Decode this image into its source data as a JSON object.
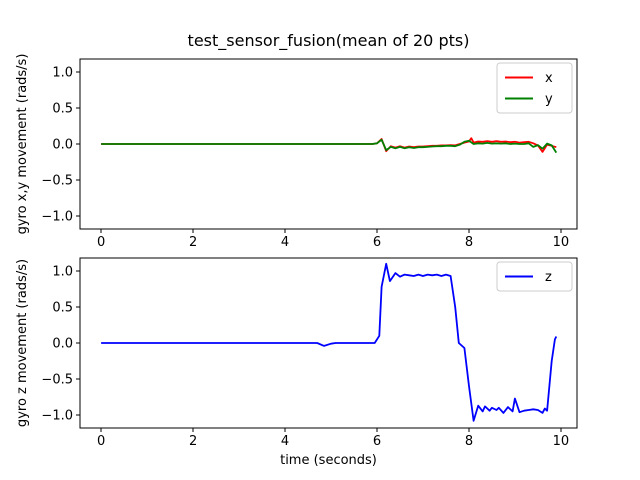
{
  "figure": {
    "background": "#ffffff",
    "title": "test_sensor_fusion(mean of 20 pts)"
  },
  "chart_data": [
    {
      "type": "line",
      "title": "test_sensor_fusion(mean of 20 pts)",
      "xlabel": "",
      "ylabel": "gyro x,y movement (rads/s)",
      "xlim": [
        -0.46,
        10.35
      ],
      "ylim": [
        -1.18,
        1.18
      ],
      "grid": false,
      "legend_position": "upper right",
      "xticks": {
        "values": [
          0,
          2,
          4,
          6,
          8,
          10
        ],
        "labels": [
          "0",
          "2",
          "4",
          "6",
          "8",
          "10"
        ]
      },
      "yticks": {
        "values": [
          1.0,
          0.5,
          0.0,
          -0.5,
          -1.0
        ],
        "labels": [
          "1.0",
          "0.5",
          "0.0",
          "−0.5",
          "−1.0"
        ]
      },
      "series": [
        {
          "name": "x",
          "color": "#ff0000",
          "points": [
            [
              0.0,
              0.0
            ],
            [
              0.5,
              0.0
            ],
            [
              1.0,
              0.0
            ],
            [
              1.5,
              0.0
            ],
            [
              2.0,
              0.0
            ],
            [
              2.5,
              0.0
            ],
            [
              3.0,
              0.0
            ],
            [
              3.5,
              0.0
            ],
            [
              4.0,
              0.0
            ],
            [
              4.5,
              0.0
            ],
            [
              5.0,
              0.0
            ],
            [
              5.5,
              0.0
            ],
            [
              5.9,
              0.0
            ],
            [
              6.0,
              0.01
            ],
            [
              6.1,
              0.07
            ],
            [
              6.2,
              -0.1
            ],
            [
              6.3,
              -0.03
            ],
            [
              6.4,
              -0.05
            ],
            [
              6.5,
              -0.03
            ],
            [
              6.6,
              -0.05
            ],
            [
              6.7,
              -0.035
            ],
            [
              6.8,
              -0.045
            ],
            [
              6.9,
              -0.035
            ],
            [
              7.0,
              -0.035
            ],
            [
              7.1,
              -0.03
            ],
            [
              7.2,
              -0.025
            ],
            [
              7.3,
              -0.025
            ],
            [
              7.4,
              -0.02
            ],
            [
              7.5,
              -0.02
            ],
            [
              7.6,
              -0.015
            ],
            [
              7.7,
              -0.02
            ],
            [
              7.8,
              0.0
            ],
            [
              7.9,
              0.02
            ],
            [
              8.0,
              0.035
            ],
            [
              8.05,
              0.08
            ],
            [
              8.1,
              0.02
            ],
            [
              8.2,
              0.035
            ],
            [
              8.3,
              0.03
            ],
            [
              8.4,
              0.04
            ],
            [
              8.5,
              0.03
            ],
            [
              8.6,
              0.04
            ],
            [
              8.7,
              0.03
            ],
            [
              8.8,
              0.035
            ],
            [
              8.9,
              0.025
            ],
            [
              9.0,
              0.03
            ],
            [
              9.1,
              0.02
            ],
            [
              9.2,
              0.025
            ],
            [
              9.3,
              0.03
            ],
            [
              9.4,
              0.01
            ],
            [
              9.5,
              -0.02
            ],
            [
              9.6,
              -0.11
            ],
            [
              9.7,
              -0.01
            ],
            [
              9.8,
              -0.025
            ],
            [
              9.9,
              -0.045
            ]
          ]
        },
        {
          "name": "y",
          "color": "#008000",
          "points": [
            [
              0.0,
              0.0
            ],
            [
              0.5,
              0.0
            ],
            [
              1.0,
              0.0
            ],
            [
              1.5,
              0.0
            ],
            [
              2.0,
              0.0
            ],
            [
              2.5,
              0.0
            ],
            [
              3.0,
              0.0
            ],
            [
              3.5,
              0.0
            ],
            [
              4.0,
              0.0
            ],
            [
              4.5,
              0.0
            ],
            [
              5.0,
              0.0
            ],
            [
              5.5,
              0.0
            ],
            [
              5.9,
              0.0
            ],
            [
              6.0,
              0.01
            ],
            [
              6.1,
              0.06
            ],
            [
              6.2,
              -0.085
            ],
            [
              6.3,
              -0.04
            ],
            [
              6.4,
              -0.06
            ],
            [
              6.5,
              -0.04
            ],
            [
              6.6,
              -0.06
            ],
            [
              6.7,
              -0.045
            ],
            [
              6.8,
              -0.055
            ],
            [
              6.9,
              -0.045
            ],
            [
              7.0,
              -0.045
            ],
            [
              7.1,
              -0.04
            ],
            [
              7.2,
              -0.035
            ],
            [
              7.3,
              -0.03
            ],
            [
              7.4,
              -0.03
            ],
            [
              7.5,
              -0.025
            ],
            [
              7.6,
              -0.025
            ],
            [
              7.7,
              -0.03
            ],
            [
              7.8,
              -0.01
            ],
            [
              7.9,
              0.03
            ],
            [
              8.0,
              0.045
            ],
            [
              8.1,
              0.0
            ],
            [
              8.2,
              0.01
            ],
            [
              8.3,
              0.005
            ],
            [
              8.4,
              0.015
            ],
            [
              8.5,
              0.005
            ],
            [
              8.6,
              0.01
            ],
            [
              8.7,
              0.005
            ],
            [
              8.8,
              0.01
            ],
            [
              8.9,
              0.0
            ],
            [
              9.0,
              0.005
            ],
            [
              9.1,
              0.0
            ],
            [
              9.2,
              0.0
            ],
            [
              9.3,
              0.01
            ],
            [
              9.4,
              -0.04
            ],
            [
              9.5,
              -0.015
            ],
            [
              9.6,
              -0.065
            ],
            [
              9.7,
              0.005
            ],
            [
              9.8,
              -0.02
            ],
            [
              9.9,
              -0.12
            ]
          ]
        }
      ]
    },
    {
      "type": "line",
      "title": "",
      "xlabel": "time (seconds)",
      "ylabel": "gyro z movement (rads/s)",
      "xlim": [
        -0.46,
        10.35
      ],
      "ylim": [
        -1.18,
        1.18
      ],
      "grid": false,
      "legend_position": "upper right",
      "xticks": {
        "values": [
          0,
          2,
          4,
          6,
          8,
          10
        ],
        "labels": [
          "0",
          "2",
          "4",
          "6",
          "8",
          "10"
        ]
      },
      "yticks": {
        "values": [
          1.0,
          0.5,
          0.0,
          -0.5,
          -1.0
        ],
        "labels": [
          "1.0",
          "0.5",
          "0.0",
          "−0.5",
          "−1.0"
        ]
      },
      "series": [
        {
          "name": "z",
          "color": "#0000ff",
          "points": [
            [
              0.0,
              0.0
            ],
            [
              0.5,
              0.0
            ],
            [
              1.0,
              0.0
            ],
            [
              1.5,
              0.0
            ],
            [
              2.0,
              0.0
            ],
            [
              2.5,
              0.0
            ],
            [
              3.0,
              0.0
            ],
            [
              3.5,
              0.0
            ],
            [
              4.0,
              0.0
            ],
            [
              4.5,
              0.0
            ],
            [
              4.7,
              0.0
            ],
            [
              4.85,
              -0.04
            ],
            [
              5.0,
              -0.01
            ],
            [
              5.1,
              0.0
            ],
            [
              5.5,
              0.0
            ],
            [
              5.95,
              0.0
            ],
            [
              6.05,
              0.1
            ],
            [
              6.1,
              0.78
            ],
            [
              6.2,
              1.1
            ],
            [
              6.28,
              0.86
            ],
            [
              6.4,
              0.97
            ],
            [
              6.5,
              0.92
            ],
            [
              6.6,
              0.95
            ],
            [
              6.7,
              0.94
            ],
            [
              6.8,
              0.93
            ],
            [
              6.9,
              0.95
            ],
            [
              7.0,
              0.93
            ],
            [
              7.1,
              0.95
            ],
            [
              7.2,
              0.94
            ],
            [
              7.3,
              0.95
            ],
            [
              7.4,
              0.93
            ],
            [
              7.5,
              0.95
            ],
            [
              7.6,
              0.93
            ],
            [
              7.7,
              0.5
            ],
            [
              7.78,
              0.0
            ],
            [
              7.9,
              -0.07
            ],
            [
              8.0,
              -0.6
            ],
            [
              8.1,
              -1.08
            ],
            [
              8.2,
              -0.87
            ],
            [
              8.3,
              -0.95
            ],
            [
              8.35,
              -0.88
            ],
            [
              8.45,
              -0.94
            ],
            [
              8.5,
              -0.9
            ],
            [
              8.6,
              -0.93
            ],
            [
              8.65,
              -0.9
            ],
            [
              8.75,
              -0.97
            ],
            [
              8.85,
              -0.89
            ],
            [
              8.95,
              -0.95
            ],
            [
              9.0,
              -0.77
            ],
            [
              9.1,
              -0.96
            ],
            [
              9.2,
              -0.94
            ],
            [
              9.3,
              -0.93
            ],
            [
              9.4,
              -0.92
            ],
            [
              9.5,
              -0.93
            ],
            [
              9.6,
              -0.97
            ],
            [
              9.65,
              -0.91
            ],
            [
              9.7,
              -0.94
            ],
            [
              9.8,
              -0.25
            ],
            [
              9.87,
              0.05
            ],
            [
              9.9,
              0.09
            ]
          ]
        }
      ]
    }
  ]
}
